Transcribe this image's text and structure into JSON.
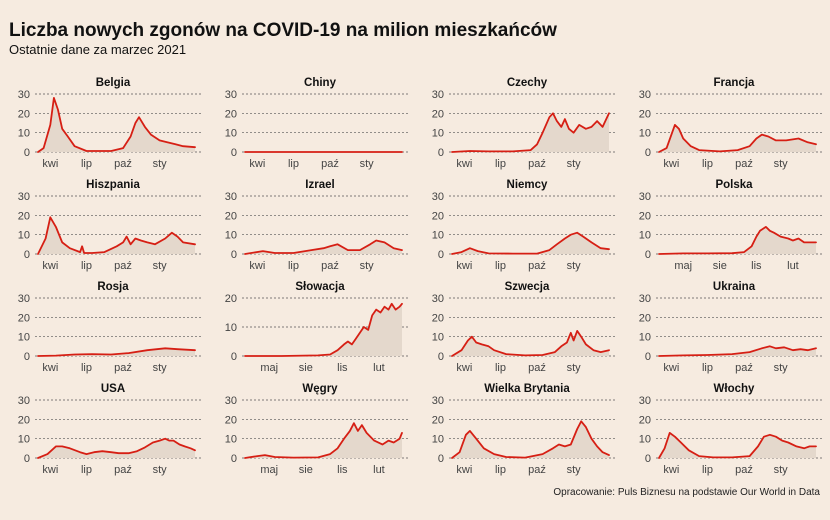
{
  "title": "Liczba nowych zgonów na COVID-19 na milion mieszkańców",
  "subtitle": "Ostatnie dane za marzec 2021",
  "source": "Opracowanie: Puls Biznesu na podstawie Our World in Data",
  "colors": {
    "line": "#d61f14",
    "fill": "#e4d8cc",
    "background": "#f6ebe0",
    "grid": "#555555"
  },
  "chart_data": [
    {
      "type": "area",
      "title": "Belgia",
      "x_start": "2020-03-01",
      "x_end": "2021-03-31",
      "ylim": [
        0,
        30
      ],
      "yticks": [
        0,
        10,
        20,
        30
      ],
      "xticks": [
        "kwi",
        "lip",
        "paź",
        "sty"
      ],
      "x": [
        "2020-03-01",
        "2020-03-15",
        "2020-04-01",
        "2020-04-10",
        "2020-04-20",
        "2020-05-01",
        "2020-05-15",
        "2020-06-01",
        "2020-07-01",
        "2020-08-01",
        "2020-09-01",
        "2020-10-01",
        "2020-10-20",
        "2020-11-01",
        "2020-11-10",
        "2020-11-25",
        "2020-12-10",
        "2021-01-01",
        "2021-01-20",
        "2021-02-10",
        "2021-03-01",
        "2021-03-31"
      ],
      "values": [
        0,
        2,
        14,
        28,
        22,
        12,
        8,
        3,
        0.5,
        0.5,
        0.5,
        2,
        8,
        15,
        18,
        13,
        9,
        6,
        5,
        4,
        3,
        2.5
      ]
    },
    {
      "type": "area",
      "title": "Chiny",
      "x_start": "2020-03-01",
      "x_end": "2021-03-31",
      "ylim": [
        0,
        30
      ],
      "yticks": [
        0,
        10,
        20,
        30
      ],
      "xticks": [
        "kwi",
        "lip",
        "paź",
        "sty"
      ],
      "x": [
        "2020-03-01",
        "2020-06-01",
        "2020-09-01",
        "2020-12-01",
        "2021-03-31"
      ],
      "values": [
        0,
        0,
        0,
        0,
        0
      ]
    },
    {
      "type": "area",
      "title": "Czechy",
      "x_start": "2020-03-01",
      "x_end": "2021-03-31",
      "ylim": [
        0,
        30
      ],
      "yticks": [
        0,
        10,
        20,
        30
      ],
      "xticks": [
        "kwi",
        "lip",
        "paź",
        "sty"
      ],
      "x": [
        "2020-03-01",
        "2020-04-15",
        "2020-06-01",
        "2020-08-01",
        "2020-09-15",
        "2020-10-01",
        "2020-10-15",
        "2020-11-01",
        "2020-11-10",
        "2020-11-20",
        "2020-12-01",
        "2020-12-10",
        "2020-12-20",
        "2021-01-01",
        "2021-01-15",
        "2021-02-01",
        "2021-02-15",
        "2021-03-01",
        "2021-03-15",
        "2021-03-31"
      ],
      "values": [
        0,
        0.5,
        0.3,
        0.3,
        1,
        4,
        10,
        18,
        20,
        16,
        13,
        17,
        12,
        10,
        14,
        12,
        13,
        16,
        13,
        20
      ]
    },
    {
      "type": "area",
      "title": "Francja",
      "x_start": "2020-03-01",
      "x_end": "2021-03-31",
      "ylim": [
        0,
        30
      ],
      "yticks": [
        0,
        10,
        20,
        30
      ],
      "xticks": [
        "kwi",
        "lip",
        "paź",
        "sty"
      ],
      "x": [
        "2020-03-01",
        "2020-03-20",
        "2020-04-10",
        "2020-04-20",
        "2020-05-01",
        "2020-05-20",
        "2020-06-10",
        "2020-08-01",
        "2020-09-15",
        "2020-10-15",
        "2020-11-01",
        "2020-11-15",
        "2020-12-01",
        "2020-12-20",
        "2021-01-15",
        "2021-02-15",
        "2021-03-10",
        "2021-03-31"
      ],
      "values": [
        0,
        2,
        14,
        12,
        7,
        3,
        1,
        0.3,
        1,
        3,
        7,
        9,
        8,
        6,
        6,
        7,
        5,
        4
      ]
    },
    {
      "type": "area",
      "title": "Hiszpania",
      "x_start": "2020-03-01",
      "x_end": "2021-03-31",
      "ylim": [
        0,
        30
      ],
      "yticks": [
        0,
        10,
        20,
        30
      ],
      "xticks": [
        "kwi",
        "lip",
        "paź",
        "sty"
      ],
      "x": [
        "2020-03-01",
        "2020-03-20",
        "2020-04-01",
        "2020-04-15",
        "2020-05-01",
        "2020-05-20",
        "2020-06-15",
        "2020-06-20",
        "2020-06-25",
        "2020-07-15",
        "2020-08-15",
        "2020-09-15",
        "2020-10-01",
        "2020-10-10",
        "2020-10-20",
        "2020-11-01",
        "2020-11-15",
        "2020-12-01",
        "2020-12-20",
        "2021-01-15",
        "2021-02-01",
        "2021-02-15",
        "2021-03-01",
        "2021-03-31"
      ],
      "values": [
        0,
        8,
        19,
        14,
        6,
        3,
        1,
        4,
        0.5,
        0.5,
        1,
        4,
        6,
        9,
        5,
        8,
        7,
        6,
        5,
        8,
        11,
        9,
        6,
        5
      ]
    },
    {
      "type": "area",
      "title": "Izrael",
      "x_start": "2020-03-01",
      "x_end": "2021-03-31",
      "ylim": [
        0,
        30
      ],
      "yticks": [
        0,
        10,
        20,
        30
      ],
      "xticks": [
        "kwi",
        "lip",
        "paź",
        "sty"
      ],
      "x": [
        "2020-03-01",
        "2020-04-15",
        "2020-05-15",
        "2020-07-01",
        "2020-08-15",
        "2020-09-15",
        "2020-10-01",
        "2020-10-20",
        "2020-11-15",
        "2020-12-15",
        "2021-01-10",
        "2021-01-25",
        "2021-02-15",
        "2021-03-10",
        "2021-03-31"
      ],
      "values": [
        0,
        1.5,
        0.5,
        0.5,
        2,
        3,
        4,
        5,
        2,
        2,
        5,
        7,
        6,
        3,
        2
      ]
    },
    {
      "type": "area",
      "title": "Niemcy",
      "x_start": "2020-03-01",
      "x_end": "2021-03-31",
      "ylim": [
        0,
        30
      ],
      "yticks": [
        0,
        10,
        20,
        30
      ],
      "xticks": [
        "kwi",
        "lip",
        "paź",
        "sty"
      ],
      "x": [
        "2020-03-01",
        "2020-03-25",
        "2020-04-15",
        "2020-05-05",
        "2020-06-01",
        "2020-08-01",
        "2020-10-01",
        "2020-11-01",
        "2020-11-20",
        "2020-12-10",
        "2020-12-25",
        "2021-01-10",
        "2021-01-25",
        "2021-02-15",
        "2021-03-10",
        "2021-03-31"
      ],
      "values": [
        0,
        1,
        3,
        1.5,
        0.3,
        0.2,
        0.2,
        2,
        5,
        8,
        10,
        11,
        9,
        6,
        3,
        2.5
      ]
    },
    {
      "type": "area",
      "title": "Polska",
      "x_start": "2020-03-01",
      "x_end": "2021-03-31",
      "ylim": [
        0,
        30
      ],
      "yticks": [
        0,
        10,
        20,
        30
      ],
      "xticks": [
        "maj",
        "sie",
        "lis",
        "lut"
      ],
      "x": [
        "2020-03-01",
        "2020-05-01",
        "2020-07-01",
        "2020-09-01",
        "2020-10-01",
        "2020-10-20",
        "2020-11-01",
        "2020-11-10",
        "2020-11-25",
        "2020-12-05",
        "2020-12-15",
        "2021-01-01",
        "2021-01-20",
        "2021-02-01",
        "2021-02-15",
        "2021-03-01",
        "2021-03-15",
        "2021-03-31"
      ],
      "values": [
        0,
        0.3,
        0.3,
        0.4,
        1,
        4,
        9,
        12,
        14,
        12,
        11,
        9,
        8,
        7,
        8,
        6,
        6,
        6
      ]
    },
    {
      "type": "area",
      "title": "Rosja",
      "x_start": "2020-03-01",
      "x_end": "2021-03-31",
      "ylim": [
        0,
        30
      ],
      "yticks": [
        0,
        10,
        20,
        30
      ],
      "xticks": [
        "kwi",
        "lip",
        "paź",
        "sty"
      ],
      "x": [
        "2020-03-01",
        "2020-04-15",
        "2020-06-01",
        "2020-07-15",
        "2020-09-01",
        "2020-10-15",
        "2020-12-01",
        "2020-12-25",
        "2021-01-15",
        "2021-02-15",
        "2021-03-31"
      ],
      "values": [
        0,
        0.2,
        0.8,
        1,
        0.8,
        1.5,
        3,
        3.5,
        4,
        3.5,
        3
      ]
    },
    {
      "type": "area",
      "title": "Słowacja",
      "x_start": "2020-03-01",
      "x_end": "2021-03-31",
      "ylim": [
        0,
        20
      ],
      "yticks": [
        0,
        10,
        20
      ],
      "xticks": [
        "maj",
        "sie",
        "lis",
        "lut"
      ],
      "x": [
        "2020-03-01",
        "2020-06-01",
        "2020-09-01",
        "2020-10-01",
        "2020-10-20",
        "2020-11-05",
        "2020-11-15",
        "2020-11-25",
        "2020-12-05",
        "2020-12-15",
        "2020-12-25",
        "2021-01-05",
        "2021-01-15",
        "2021-01-25",
        "2021-02-05",
        "2021-02-15",
        "2021-02-25",
        "2021-03-05",
        "2021-03-15",
        "2021-03-25",
        "2021-03-31"
      ],
      "values": [
        0,
        0,
        0.2,
        0.5,
        2,
        4,
        5,
        4,
        6,
        8,
        10,
        9,
        14,
        16,
        15,
        17,
        16,
        18,
        16,
        17,
        18
      ]
    },
    {
      "type": "area",
      "title": "Szwecja",
      "x_start": "2020-03-01",
      "x_end": "2021-03-31",
      "ylim": [
        0,
        30
      ],
      "yticks": [
        0,
        10,
        20,
        30
      ],
      "xticks": [
        "kwi",
        "lip",
        "paź",
        "sty"
      ],
      "x": [
        "2020-03-01",
        "2020-03-25",
        "2020-04-10",
        "2020-04-20",
        "2020-05-01",
        "2020-05-15",
        "2020-06-01",
        "2020-06-15",
        "2020-07-15",
        "2020-09-01",
        "2020-10-15",
        "2020-11-15",
        "2020-12-01",
        "2020-12-15",
        "2020-12-25",
        "2021-01-01",
        "2021-01-10",
        "2021-01-20",
        "2021-02-01",
        "2021-02-20",
        "2021-03-10",
        "2021-03-31"
      ],
      "values": [
        0,
        3,
        8,
        10,
        7,
        6,
        5,
        3,
        1,
        0.3,
        0.5,
        2,
        5,
        7,
        12,
        8,
        13,
        10,
        6,
        3,
        2,
        3
      ]
    },
    {
      "type": "area",
      "title": "Ukraina",
      "x_start": "2020-03-01",
      "x_end": "2021-03-31",
      "ylim": [
        0,
        30
      ],
      "yticks": [
        0,
        10,
        20,
        30
      ],
      "xticks": [
        "kwi",
        "lip",
        "paź",
        "sty"
      ],
      "x": [
        "2020-03-01",
        "2020-05-01",
        "2020-07-01",
        "2020-09-01",
        "2020-10-15",
        "2020-11-15",
        "2020-12-05",
        "2020-12-20",
        "2021-01-10",
        "2021-02-01",
        "2021-02-20",
        "2021-03-10",
        "2021-03-31"
      ],
      "values": [
        0,
        0.3,
        0.5,
        1,
        2,
        4,
        5,
        4,
        4.5,
        3,
        3.5,
        3,
        4
      ]
    },
    {
      "type": "area",
      "title": "USA",
      "x_start": "2020-03-01",
      "x_end": "2021-03-31",
      "ylim": [
        0,
        30
      ],
      "yticks": [
        0,
        10,
        20,
        30
      ],
      "xticks": [
        "kwi",
        "lip",
        "paź",
        "sty"
      ],
      "x": [
        "2020-03-01",
        "2020-03-25",
        "2020-04-15",
        "2020-05-01",
        "2020-05-20",
        "2020-06-15",
        "2020-07-01",
        "2020-07-20",
        "2020-08-10",
        "2020-09-01",
        "2020-09-20",
        "2020-10-15",
        "2020-11-05",
        "2020-11-25",
        "2020-12-15",
        "2021-01-01",
        "2021-01-15",
        "2021-01-25",
        "2021-02-05",
        "2021-02-20",
        "2021-03-05",
        "2021-03-20",
        "2021-03-31"
      ],
      "values": [
        0,
        2,
        6,
        6,
        5,
        3,
        2,
        3,
        3.5,
        3,
        2.5,
        2.5,
        3.5,
        5.5,
        8,
        9,
        10,
        9,
        9,
        7,
        6,
        5,
        4
      ]
    },
    {
      "type": "area",
      "title": "Węgry",
      "x_start": "2020-03-01",
      "x_end": "2021-03-31",
      "ylim": [
        0,
        30
      ],
      "yticks": [
        0,
        10,
        20,
        30
      ],
      "xticks": [
        "maj",
        "sie",
        "lis",
        "lut"
      ],
      "x": [
        "2020-03-01",
        "2020-04-01",
        "2020-04-20",
        "2020-05-15",
        "2020-07-01",
        "2020-09-01",
        "2020-10-01",
        "2020-10-20",
        "2020-11-05",
        "2020-11-20",
        "2020-11-30",
        "2020-12-10",
        "2020-12-20",
        "2021-01-01",
        "2021-01-20",
        "2021-02-10",
        "2021-02-25",
        "2021-03-10",
        "2021-03-25",
        "2021-03-31"
      ],
      "values": [
        0,
        1,
        1.5,
        0.5,
        0.2,
        0.3,
        2,
        5,
        10,
        14,
        18,
        14,
        17,
        13,
        9,
        7,
        9,
        8,
        10,
        13
      ]
    },
    {
      "type": "area",
      "title": "Wielka Brytania",
      "x_start": "2020-03-01",
      "x_end": "2021-03-31",
      "ylim": [
        0,
        30
      ],
      "yticks": [
        0,
        10,
        20,
        30
      ],
      "xticks": [
        "kwi",
        "lip",
        "paź",
        "sty"
      ],
      "x": [
        "2020-03-01",
        "2020-03-20",
        "2020-04-05",
        "2020-04-15",
        "2020-05-01",
        "2020-05-20",
        "2020-06-15",
        "2020-07-15",
        "2020-09-01",
        "2020-10-15",
        "2020-11-10",
        "2020-11-25",
        "2020-12-10",
        "2020-12-25",
        "2021-01-10",
        "2021-01-20",
        "2021-02-01",
        "2021-02-15",
        "2021-03-01",
        "2021-03-15",
        "2021-03-31"
      ],
      "values": [
        0,
        3,
        12,
        14,
        10,
        5,
        2,
        0.5,
        0.2,
        2,
        5,
        7,
        6,
        7,
        15,
        19,
        16,
        10,
        6,
        3,
        1.5
      ]
    },
    {
      "type": "area",
      "title": "Włochy",
      "x_start": "2020-03-01",
      "x_end": "2021-03-31",
      "ylim": [
        0,
        30
      ],
      "yticks": [
        0,
        10,
        20,
        30
      ],
      "xticks": [
        "kwi",
        "lip",
        "paź",
        "sty"
      ],
      "x": [
        "2020-03-01",
        "2020-03-15",
        "2020-03-28",
        "2020-04-10",
        "2020-04-25",
        "2020-05-15",
        "2020-06-10",
        "2020-07-15",
        "2020-09-01",
        "2020-10-15",
        "2020-11-05",
        "2020-11-20",
        "2020-12-05",
        "2020-12-20",
        "2021-01-05",
        "2021-01-20",
        "2021-02-10",
        "2021-03-01",
        "2021-03-15",
        "2021-03-31"
      ],
      "values": [
        0,
        5,
        13,
        11,
        8,
        4,
        1,
        0.3,
        0.3,
        1,
        6,
        11,
        12,
        11,
        9,
        8,
        6,
        5,
        6,
        6
      ]
    }
  ]
}
